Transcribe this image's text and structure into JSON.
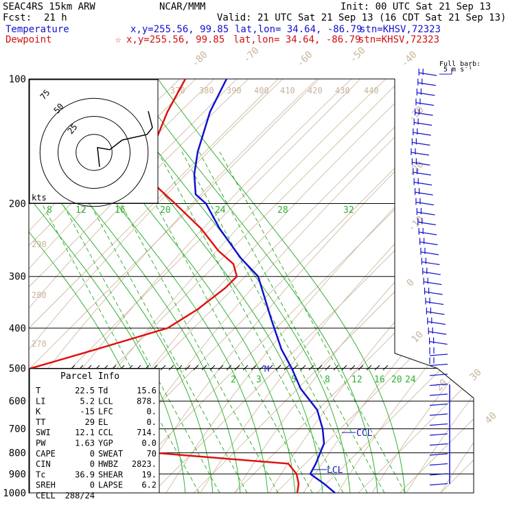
{
  "header": {
    "model": "SEAC4RS 15km ARW",
    "org": "NCAR/MMM",
    "init": "Init: 00 UTC Sat 21 Sep 13",
    "fcst_label": "Fcst:",
    "fcst_value": "21 h",
    "valid": "Valid: 21 UTC Sat 21 Sep 13 (16 CDT Sat 21 Sep 13)",
    "temp_label": "Temperature",
    "temp_xy": "x,y=255.56, 99.85",
    "temp_latlon": "lat,lon= 34.64, -86.79",
    "temp_stn": "stn=KHSV,72323",
    "dew_label": "Dewpoint",
    "dew_star": "☆",
    "dew_xy": "x,y=255.56, 99.85",
    "dew_latlon": "lat,lon= 34.64, -86.79",
    "dew_stn": "stn=KHSV,72323"
  },
  "colors": {
    "temperature": "#1010d0",
    "dewpoint": "#e01010",
    "isotherm": "#c8b49a",
    "theta": "#c8b49a",
    "mixing_ratio": "#30b030",
    "isobar": "#000000"
  },
  "chart_data": {
    "type": "line",
    "title": "Skew-T log-p sounding",
    "y_scale": "log",
    "yticks": [
      "100",
      "200",
      "300",
      "400",
      "500",
      "600",
      "700",
      "800",
      "900",
      "1000"
    ],
    "isotherm_labels": [
      "-80",
      "-70",
      "-60",
      "-50",
      "-40",
      "-30",
      "-20",
      "-10",
      "0",
      "10",
      "20",
      "30",
      "40"
    ],
    "theta_labels": [
      "370",
      "380",
      "390",
      "400",
      "410",
      "420",
      "430",
      "440",
      "290",
      "280",
      "270"
    ],
    "mixing_ratio_labels_upper": [
      "8",
      "12",
      "16",
      "20",
      "24",
      "28",
      "32"
    ],
    "mixing_ratio_labels_lower": [
      "2",
      "3",
      "5",
      "8",
      "12",
      "16",
      "20",
      "24"
    ],
    "series": [
      {
        "name": "Temperature",
        "points": [
          [
            100,
            330
          ],
          [
            120,
            306
          ],
          [
            150,
            288
          ],
          [
            170,
            283
          ],
          [
            190,
            285
          ],
          [
            200,
            300
          ],
          [
            230,
            320
          ],
          [
            270,
            350
          ],
          [
            300,
            376
          ],
          [
            380,
            395
          ],
          [
            450,
            410
          ],
          [
            500,
            425
          ],
          [
            560,
            438
          ],
          [
            630,
            462
          ],
          [
            700,
            470
          ],
          [
            760,
            472
          ],
          [
            850,
            460
          ],
          [
            900,
            452
          ],
          [
            950,
            472
          ],
          [
            1000,
            488
          ]
        ]
      },
      {
        "name": "Dewpoint",
        "points": [
          [
            100,
            270
          ],
          [
            120,
            244
          ],
          [
            150,
            220
          ],
          [
            160,
            178
          ],
          [
            180,
            225
          ],
          [
            200,
            255
          ],
          [
            230,
            293
          ],
          [
            260,
            318
          ],
          [
            280,
            340
          ],
          [
            300,
            345
          ],
          [
            320,
            328
          ],
          [
            360,
            288
          ],
          [
            400,
            244
          ],
          [
            450,
            140
          ],
          [
            480,
            82
          ],
          [
            500,
            45
          ],
          [
            600,
            160
          ],
          [
            700,
            193
          ],
          [
            800,
            225
          ],
          [
            850,
            420
          ],
          [
            900,
            432
          ],
          [
            950,
            435
          ],
          [
            1000,
            433
          ]
        ]
      }
    ],
    "annotations": [
      "M",
      "CCL",
      "LCL"
    ],
    "parcel_info": {
      "title": "Parcel Info",
      "rows": [
        [
          "T",
          "22.5",
          "Td",
          "15.6"
        ],
        [
          "LI",
          "5.2",
          "LCL",
          "878."
        ],
        [
          "K",
          "-15",
          "LFC",
          "0."
        ],
        [
          "TT",
          "29",
          "EL",
          "0."
        ],
        [
          "SWI",
          "12.1",
          "CCL",
          "714."
        ],
        [
          "PW",
          "1.63",
          "YGP",
          "0.0"
        ],
        [
          "CAPE",
          "0",
          "SWEAT",
          "70"
        ],
        [
          "CIN",
          "0",
          "HWBZ",
          "2823."
        ],
        [
          "Tc",
          "36.9",
          "SHEAR",
          "19."
        ],
        [
          "SREH",
          "0",
          "LAPSE",
          "6.2"
        ],
        [
          "CELL",
          "288/24",
          "",
          ""
        ]
      ]
    },
    "hodograph": {
      "units": "kts",
      "rings": [
        "25",
        "50",
        "75"
      ]
    },
    "barbs": {
      "legend_line1": "Full barb:",
      "legend_line2": "5 m s⁻¹"
    }
  }
}
